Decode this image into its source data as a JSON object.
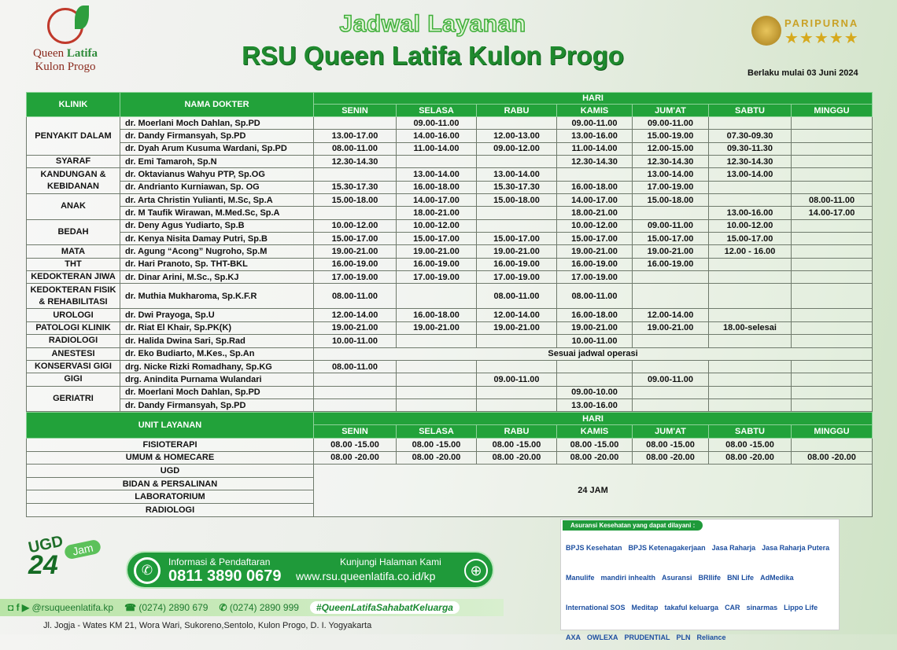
{
  "logo": {
    "line1a": "Queen ",
    "line1b": "Latifa",
    "line2": "Kulon Progo"
  },
  "header": {
    "subtitle": "Jadwal Layanan",
    "title": "RSU Queen Latifa Kulon Progo",
    "accreditation": "PARIPURNA",
    "stars": "★★★★★",
    "effective": "Berlaku mulai 03 Juni 2024"
  },
  "table": {
    "col_klinik": "KLINIK",
    "col_dokter": "NAMA DOKTER",
    "col_hari": "HARI",
    "days": [
      "SENIN",
      "SELASA",
      "RABU",
      "KAMIS",
      "JUM'AT",
      "SABTU",
      "MINGGU"
    ],
    "clinics": [
      {
        "name": "PENYAKIT DALAM",
        "doctors": [
          {
            "name": "dr. Moerlani Moch Dahlan, Sp.PD",
            "times": [
              "",
              "09.00-11.00",
              "",
              "09.00-11.00",
              "09.00-11.00",
              "",
              ""
            ]
          },
          {
            "name": "dr. Dandy Firmansyah, Sp.PD",
            "times": [
              "13.00-17.00",
              "14.00-16.00",
              "12.00-13.00",
              "13.00-16.00",
              "15.00-19.00",
              "07.30-09.30",
              ""
            ]
          },
          {
            "name": "dr. Dyah Arum Kusuma Wardani, Sp.PD",
            "times": [
              "08.00-11.00",
              "11.00-14.00",
              "09.00-12.00",
              "11.00-14.00",
              "12.00-15.00",
              "09.30-11.30",
              ""
            ]
          }
        ]
      },
      {
        "name": "SYARAF",
        "doctors": [
          {
            "name": "dr. Emi Tamaroh, Sp.N",
            "times": [
              "12.30-14.30",
              "",
              "",
              "12.30-14.30",
              "12.30-14.30",
              "12.30-14.30",
              ""
            ]
          }
        ]
      },
      {
        "name": "KANDUNGAN & KEBIDANAN",
        "doctors": [
          {
            "name": "dr. Oktavianus Wahyu PTP, Sp.OG",
            "times": [
              "",
              "13.00-14.00",
              "13.00-14.00",
              "",
              "13.00-14.00",
              "13.00-14.00",
              ""
            ]
          },
          {
            "name": "dr. Andrianto Kurniawan, Sp. OG",
            "times": [
              "15.30-17.30",
              "16.00-18.00",
              "15.30-17.30",
              "16.00-18.00",
              "17.00-19.00",
              "",
              ""
            ]
          }
        ]
      },
      {
        "name": "ANAK",
        "doctors": [
          {
            "name": "dr. Arta Christin Yulianti, M.Sc, Sp.A",
            "times": [
              "15.00-18.00",
              "14.00-17.00",
              "15.00-18.00",
              "14.00-17.00",
              "15.00-18.00",
              "",
              "08.00-11.00"
            ]
          },
          {
            "name": "dr. M Taufik  Wirawan, M.Med.Sc, Sp.A",
            "times": [
              "",
              "18.00-21.00",
              "",
              "18.00-21.00",
              "",
              "13.00-16.00",
              "14.00-17.00"
            ]
          }
        ]
      },
      {
        "name": "BEDAH",
        "doctors": [
          {
            "name": "dr. Deny Agus Yudiarto, Sp.B",
            "times": [
              "10.00-12.00",
              "10.00-12.00",
              "",
              "10.00-12.00",
              "09.00-11.00",
              "10.00-12.00",
              ""
            ]
          },
          {
            "name": "dr. Kenya Nisita Damay Putri, Sp.B",
            "times": [
              "15.00-17.00",
              "15.00-17.00",
              "15.00-17.00",
              "15.00-17.00",
              "15.00-17.00",
              "15.00-17.00",
              ""
            ]
          }
        ]
      },
      {
        "name": "MATA",
        "doctors": [
          {
            "name": "dr. Agung “Acong” Nugroho, Sp.M",
            "times": [
              "19.00-21.00",
              "19.00-21.00",
              "19.00-21.00",
              "19.00-21.00",
              "19.00-21.00",
              "12.00 - 16.00",
              ""
            ]
          }
        ]
      },
      {
        "name": "THT",
        "doctors": [
          {
            "name": "dr. Hari Pranoto, Sp. THT-BKL",
            "times": [
              "16.00-19.00",
              "16.00-19.00",
              "16.00-19.00",
              "16.00-19.00",
              "16.00-19.00",
              "",
              ""
            ]
          }
        ]
      },
      {
        "name": "KEDOKTERAN JIWA",
        "doctors": [
          {
            "name": "dr. Dinar Arini, M.Sc., Sp.KJ",
            "times": [
              "17.00-19.00",
              "17.00-19.00",
              "17.00-19.00",
              "17.00-19.00",
              "",
              "",
              ""
            ]
          }
        ]
      },
      {
        "name": "KEDOKTERAN FISIK & REHABILITASI",
        "tall": true,
        "doctors": [
          {
            "name": "dr. Muthia Mukharoma, Sp.K.F.R",
            "times": [
              "08.00-11.00",
              "",
              "08.00-11.00",
              "08.00-11.00",
              "",
              "",
              ""
            ]
          }
        ]
      },
      {
        "name": "UROLOGI",
        "doctors": [
          {
            "name": "dr. Dwi Prayoga, Sp.U",
            "times": [
              "12.00-14.00",
              "16.00-18.00",
              "12.00-14.00",
              "16.00-18.00",
              "12.00-14.00",
              "",
              ""
            ]
          }
        ]
      },
      {
        "name": "PATOLOGI KLINIK",
        "doctors": [
          {
            "name": "dr. Riat El Khair, Sp.PK(K)",
            "times": [
              "19.00-21.00",
              "19.00-21.00",
              "19.00-21.00",
              "19.00-21.00",
              "19.00-21.00",
              "18.00-selesai",
              ""
            ]
          }
        ]
      },
      {
        "name": "RADIOLOGI",
        "doctors": [
          {
            "name": "dr. Halida Dwina Sari, Sp.Rad",
            "times": [
              "10.00-11.00",
              "",
              "",
              "10.00-11.00",
              "",
              "",
              ""
            ]
          }
        ]
      },
      {
        "name": "ANESTESI",
        "doctors": [
          {
            "name": "dr. Eko Budiarto, M.Kes., Sp.An",
            "note": "Sesuai jadwal operasi"
          }
        ]
      },
      {
        "name": "KONSERVASI GIGI",
        "doctors": [
          {
            "name": "drg. Nicke Rizki Romadhany, Sp.KG",
            "times": [
              "08.00-11.00",
              "",
              "",
              "",
              "",
              "",
              ""
            ]
          }
        ]
      },
      {
        "name": "GIGI",
        "doctors": [
          {
            "name": "drg. Anindita Purnama Wulandari",
            "times": [
              "",
              "",
              "09.00-11.00",
              "",
              "09.00-11.00",
              "",
              ""
            ]
          }
        ]
      },
      {
        "name": "GERIATRI",
        "doctors": [
          {
            "name": "dr. Moerlani Moch Dahlan, Sp.PD",
            "times": [
              "",
              "",
              "",
              "09.00-10.00",
              "",
              "",
              ""
            ]
          },
          {
            "name": "dr. Dandy Firmansyah, Sp.PD",
            "times": [
              "",
              "",
              "",
              "13.00-16.00",
              "",
              "",
              ""
            ]
          }
        ]
      }
    ]
  },
  "units": {
    "col_unit": "UNIT LAYANAN",
    "col_hari": "HARI",
    "rows": [
      {
        "name": "FISIOTERAPI",
        "times": [
          "08.00 -15.00",
          "08.00 -15.00",
          "08.00 -15.00",
          "08.00 -15.00",
          "08.00 -15.00",
          "08.00 -15.00",
          ""
        ]
      },
      {
        "name": "UMUM & HOMECARE",
        "times": [
          "08.00 -20.00",
          "08.00 -20.00",
          "08.00 -20.00",
          "08.00 -20.00",
          "08.00 -20.00",
          "08.00 -20.00",
          "08.00 -20.00"
        ]
      },
      {
        "name": "UGD"
      },
      {
        "name": "BIDAN & PERSALINAN"
      },
      {
        "name": "LABORATORIUM"
      },
      {
        "name": "RADIOLOGI"
      }
    ],
    "fulltime": "24 JAM"
  },
  "footer": {
    "ugd": "UGD",
    "ugd_num": "24",
    "ugd_jam": "Jam",
    "info_label": "Informasi & Pendaftaran",
    "phone": "0811 3890 0679",
    "web_label": "Kunjungi Halaman Kami",
    "web": "www.rsu.queenlatifa.co.id/kp",
    "social": "@rsuqueenlatifa.kp",
    "tel1": "(0274) 2890 679",
    "tel2": "(0274) 2890 999",
    "hashtag": "#QueenLatifaSahabatKeluarga",
    "address": "Jl. Jogja - Wates KM 21, Wora Wari, Sukoreno,Sentolo, Kulon Progo, D. I. Yogyakarta"
  },
  "insurance": {
    "title": "Asuransi Kesehatan yang dapat dilayani :",
    "logos": [
      "BPJS Kesehatan",
      "BPJS Ketenagakerjaan",
      "Jasa Raharja",
      "Jasa Raharja Putera",
      "Manulife",
      "mandiri inhealth",
      "Asuransi",
      "BRIlife",
      "BNI Life",
      "AdMedika",
      "International SOS",
      "Meditap",
      "takaful keluarga",
      "CAR",
      "sinarmas",
      "Lippo Life",
      "AXA",
      "OWLEXA",
      "PRUDENTIAL",
      "PLN",
      "Reliance"
    ]
  },
  "colors": {
    "primary": "#22a23a",
    "dark_green": "#1f8a2e",
    "brand_red": "#8a2a1d",
    "gold": "#c9a227"
  }
}
